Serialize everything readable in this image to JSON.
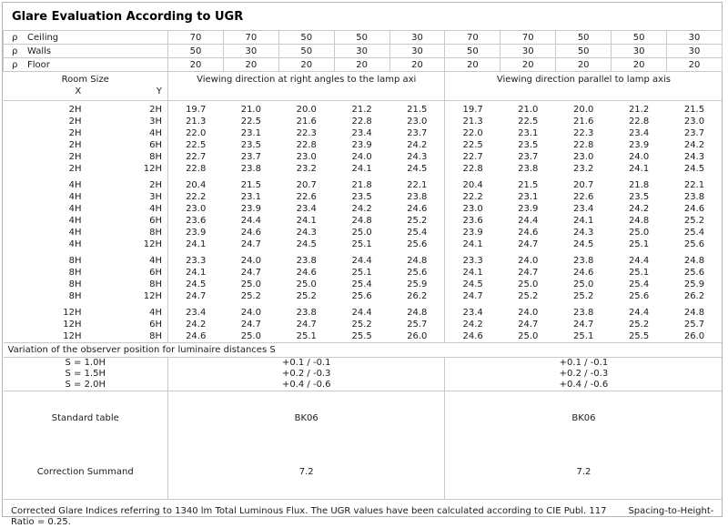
{
  "title": "Glare Evaluation According to UGR",
  "colors": {
    "border": "#c9c9c9",
    "text": "#1f1a17",
    "background": "#ffffff"
  },
  "reflectance": {
    "rows": [
      {
        "symbol": "ρ",
        "name": "Ceiling",
        "values": [
          "70",
          "70",
          "50",
          "50",
          "30",
          "70",
          "70",
          "50",
          "50",
          "30"
        ]
      },
      {
        "symbol": "ρ",
        "name": "Walls",
        "values": [
          "50",
          "30",
          "50",
          "30",
          "30",
          "50",
          "30",
          "50",
          "30",
          "30"
        ]
      },
      {
        "symbol": "ρ",
        "name": "Floor",
        "values": [
          "20",
          "20",
          "20",
          "20",
          "20",
          "20",
          "20",
          "20",
          "20",
          "20"
        ]
      }
    ]
  },
  "header": {
    "room_size": "Room Size",
    "x_label": "X",
    "y_label": "Y",
    "right_angles": "Viewing direction at right angles to the lamp axi",
    "parallel": "Viewing direction parallel to lamp axis"
  },
  "ugr_table": {
    "groups": [
      {
        "rows": [
          {
            "x": "2H",
            "y": "2H",
            "values": [
              "19.7",
              "21.0",
              "20.0",
              "21.2",
              "21.5",
              "19.7",
              "21.0",
              "20.0",
              "21.2",
              "21.5"
            ]
          },
          {
            "x": "2H",
            "y": "3H",
            "values": [
              "21.3",
              "22.5",
              "21.6",
              "22.8",
              "23.0",
              "21.3",
              "22.5",
              "21.6",
              "22.8",
              "23.0"
            ]
          },
          {
            "x": "2H",
            "y": "4H",
            "values": [
              "22.0",
              "23.1",
              "22.3",
              "23.4",
              "23.7",
              "22.0",
              "23.1",
              "22.3",
              "23.4",
              "23.7"
            ]
          },
          {
            "x": "2H",
            "y": "6H",
            "values": [
              "22.5",
              "23.5",
              "22.8",
              "23.9",
              "24.2",
              "22.5",
              "23.5",
              "22.8",
              "23.9",
              "24.2"
            ]
          },
          {
            "x": "2H",
            "y": "8H",
            "values": [
              "22.7",
              "23.7",
              "23.0",
              "24.0",
              "24.3",
              "22.7",
              "23.7",
              "23.0",
              "24.0",
              "24.3"
            ]
          },
          {
            "x": "2H",
            "y": "12H",
            "values": [
              "22.8",
              "23.8",
              "23.2",
              "24.1",
              "24.5",
              "22.8",
              "23.8",
              "23.2",
              "24.1",
              "24.5"
            ]
          }
        ]
      },
      {
        "rows": [
          {
            "x": "4H",
            "y": "2H",
            "values": [
              "20.4",
              "21.5",
              "20.7",
              "21.8",
              "22.1",
              "20.4",
              "21.5",
              "20.7",
              "21.8",
              "22.1"
            ]
          },
          {
            "x": "4H",
            "y": "3H",
            "values": [
              "22.2",
              "23.1",
              "22.6",
              "23.5",
              "23.8",
              "22.2",
              "23.1",
              "22.6",
              "23.5",
              "23.8"
            ]
          },
          {
            "x": "4H",
            "y": "4H",
            "values": [
              "23.0",
              "23.9",
              "23.4",
              "24.2",
              "24.6",
              "23.0",
              "23.9",
              "23.4",
              "24.2",
              "24.6"
            ]
          },
          {
            "x": "4H",
            "y": "6H",
            "values": [
              "23.6",
              "24.4",
              "24.1",
              "24.8",
              "25.2",
              "23.6",
              "24.4",
              "24.1",
              "24.8",
              "25.2"
            ]
          },
          {
            "x": "4H",
            "y": "8H",
            "values": [
              "23.9",
              "24.6",
              "24.3",
              "25.0",
              "25.4",
              "23.9",
              "24.6",
              "24.3",
              "25.0",
              "25.4"
            ]
          },
          {
            "x": "4H",
            "y": "12H",
            "values": [
              "24.1",
              "24.7",
              "24.5",
              "25.1",
              "25.6",
              "24.1",
              "24.7",
              "24.5",
              "25.1",
              "25.6"
            ]
          }
        ]
      },
      {
        "rows": [
          {
            "x": "8H",
            "y": "4H",
            "values": [
              "23.3",
              "24.0",
              "23.8",
              "24.4",
              "24.8",
              "23.3",
              "24.0",
              "23.8",
              "24.4",
              "24.8"
            ]
          },
          {
            "x": "8H",
            "y": "6H",
            "values": [
              "24.1",
              "24.7",
              "24.6",
              "25.1",
              "25.6",
              "24.1",
              "24.7",
              "24.6",
              "25.1",
              "25.6"
            ]
          },
          {
            "x": "8H",
            "y": "8H",
            "values": [
              "24.5",
              "25.0",
              "25.0",
              "25.4",
              "25.9",
              "24.5",
              "25.0",
              "25.0",
              "25.4",
              "25.9"
            ]
          },
          {
            "x": "8H",
            "y": "12H",
            "values": [
              "24.7",
              "25.2",
              "25.2",
              "25.6",
              "26.2",
              "24.7",
              "25.2",
              "25.2",
              "25.6",
              "26.2"
            ]
          }
        ]
      },
      {
        "rows": [
          {
            "x": "12H",
            "y": "4H",
            "values": [
              "23.4",
              "24.0",
              "23.8",
              "24.4",
              "24.8",
              "23.4",
              "24.0",
              "23.8",
              "24.4",
              "24.8"
            ]
          },
          {
            "x": "12H",
            "y": "6H",
            "values": [
              "24.2",
              "24.7",
              "24.7",
              "25.2",
              "25.7",
              "24.2",
              "24.7",
              "24.7",
              "25.2",
              "25.7"
            ]
          },
          {
            "x": "12H",
            "y": "8H",
            "values": [
              "24.6",
              "25.0",
              "25.1",
              "25.5",
              "26.0",
              "24.6",
              "25.0",
              "25.1",
              "25.5",
              "26.0"
            ]
          }
        ]
      }
    ]
  },
  "variation_note": "Variation of the observer position for luminaire distances S",
  "s_variation": {
    "rows": [
      {
        "label": "S = 1.0H",
        "values": [
          "+0.1 / -0.1",
          "+0.1 / -0.1"
        ]
      },
      {
        "label": "S = 1.5H",
        "values": [
          "+0.2 / -0.3",
          "+0.2 / -0.3"
        ]
      },
      {
        "label": "S = 2.0H",
        "values": [
          "+0.4 / -0.6",
          "+0.4 / -0.6"
        ]
      }
    ]
  },
  "summary": {
    "standard_label": "Standard table",
    "standard_values": [
      "BK06",
      "BK06"
    ],
    "correction_label": "Correction Summand",
    "correction_values": [
      "7.2",
      "7.2"
    ]
  },
  "footer": {
    "note": "Corrected Glare Indices referring to 1340 lm Total Luminous Flux. The UGR values have been calculated according to CIE Publ. 117",
    "ratio": "Spacing-to-Height-Ratio = 0.25."
  }
}
